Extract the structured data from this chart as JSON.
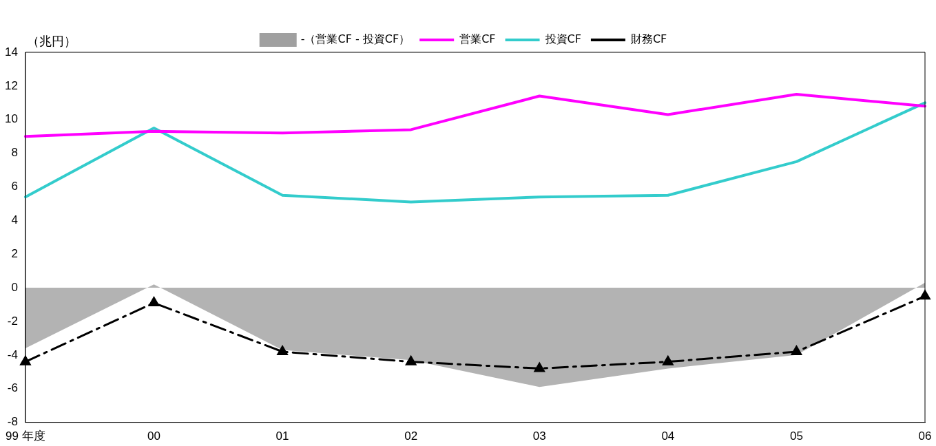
{
  "chart_data": {
    "type": "line",
    "ylabel": "（兆円）",
    "categories": [
      "99 年度",
      "00",
      "01",
      "02",
      "03",
      "04",
      "05",
      "06"
    ],
    "ylim": [
      -8,
      14
    ],
    "yticks": [
      -8,
      -6,
      -4,
      -2,
      0,
      2,
      4,
      6,
      8,
      10,
      12,
      14
    ],
    "grid": false,
    "legend": "top",
    "marker": "none",
    "line_style": "solid",
    "series": [
      {
        "name": "-（営業CF - 投資CF）",
        "type": "area",
        "color": "#a0a0a0",
        "values": [
          -3.6,
          0.2,
          -3.7,
          -4.3,
          -5.9,
          -4.8,
          -4.0,
          0.3
        ]
      },
      {
        "name": "営業CF",
        "color": "#ff00ff",
        "values": [
          9.0,
          9.3,
          9.2,
          9.4,
          11.4,
          10.3,
          11.5,
          10.8
        ]
      },
      {
        "name": "投資CF",
        "color": "#33cccc",
        "values": [
          5.4,
          9.5,
          5.5,
          5.1,
          5.4,
          5.5,
          7.5,
          11.0
        ]
      },
      {
        "name": "財務CF",
        "color": "#000000",
        "line_style": "dashed",
        "marker": "triangle",
        "values": [
          -4.4,
          -0.9,
          -3.8,
          -4.4,
          -4.8,
          -4.4,
          -3.8,
          -0.5
        ]
      }
    ]
  }
}
